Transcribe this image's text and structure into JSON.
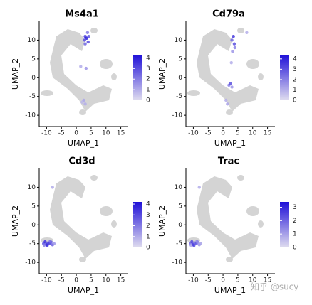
{
  "chart_data": [
    {
      "type": "scatter",
      "title": "Ms4a1",
      "x_label": "UMAP_1",
      "y_label": "UMAP_2",
      "xlim": [
        -12.5,
        17.5
      ],
      "ylim": [
        -13,
        15
      ],
      "xticks": [
        -10,
        -5,
        0,
        5,
        10,
        15
      ],
      "yticks": [
        -10,
        -5,
        0,
        5,
        10
      ],
      "x": [
        3,
        3.5,
        4,
        3,
        3.8,
        2.8,
        4.2,
        3.3,
        2.5,
        3,
        2,
        1.5
      ],
      "y": [
        11,
        10.5,
        9.5,
        9,
        12,
        10,
        11,
        2.5,
        -6,
        -7,
        -6.5,
        3
      ],
      "values": [
        3.5,
        4,
        3,
        2.5,
        2,
        3,
        2.8,
        1.5,
        1.2,
        1,
        0.8,
        1
      ],
      "low_color": "#e0ddef",
      "high_color": "#1f10d8",
      "clim": [
        0,
        4.3
      ],
      "cticks": [
        0,
        1,
        2,
        3,
        4
      ]
    },
    {
      "type": "scatter",
      "title": "Cd79a",
      "x_label": "UMAP_1",
      "y_label": "UMAP_2",
      "xlim": [
        -12.5,
        17.5
      ],
      "ylim": [
        -13,
        15
      ],
      "xticks": [
        -10,
        -5,
        0,
        5,
        10,
        15
      ],
      "yticks": [
        -10,
        -5,
        0,
        5,
        10
      ],
      "x": [
        3,
        3.5,
        4,
        3.2,
        3.8,
        2,
        2.5,
        3,
        1,
        1.5,
        8,
        2.8
      ],
      "y": [
        10,
        11,
        8,
        7,
        9,
        -2,
        -1.5,
        -2.5,
        -6,
        -7,
        12,
        4
      ],
      "values": [
        2.5,
        3.5,
        2,
        1.5,
        3,
        2,
        3,
        1.5,
        1,
        1.2,
        1,
        1
      ],
      "low_color": "#e0ddef",
      "high_color": "#1f10d8",
      "clim": [
        0,
        4.4
      ],
      "cticks": [
        0,
        1,
        2,
        3,
        4
      ]
    },
    {
      "type": "scatter",
      "title": "Cd3d",
      "x_label": "UMAP_1",
      "y_label": "UMAP_2",
      "xlim": [
        -12.5,
        17.5
      ],
      "ylim": [
        -13,
        15
      ],
      "xticks": [
        -10,
        -5,
        0,
        5,
        10,
        15
      ],
      "yticks": [
        -10,
        -5,
        0,
        5,
        10
      ],
      "x": [
        -11,
        -10.5,
        -10,
        -9.5,
        -9,
        -8.5,
        -8,
        -10.8,
        -9.8,
        -8.8,
        -7.5,
        -8
      ],
      "y": [
        -5,
        -4.5,
        -5.2,
        -4.8,
        -5,
        -4.6,
        -5.3,
        -5.4,
        -5.5,
        -4.4,
        -5,
        10
      ],
      "values": [
        3,
        3.5,
        4,
        3,
        3.2,
        2.8,
        2.5,
        2,
        3.5,
        2.2,
        1.5,
        1
      ],
      "low_color": "#e0ddef",
      "high_color": "#1f10d8",
      "clim": [
        0,
        4.2
      ],
      "cticks": [
        0,
        1,
        2,
        3,
        4
      ]
    },
    {
      "type": "scatter",
      "title": "Trac",
      "x_label": "UMAP_1",
      "y_label": "UMAP_2",
      "xlim": [
        -12.5,
        17.5
      ],
      "ylim": [
        -13,
        15
      ],
      "xticks": [
        -10,
        -5,
        0,
        5,
        10,
        15
      ],
      "yticks": [
        -10,
        -5,
        0,
        5,
        10
      ],
      "x": [
        -11,
        -10.5,
        -10,
        -9.5,
        -9,
        -8.5,
        -8,
        -10.8,
        -9.8,
        -8.8,
        -7.5,
        -8
      ],
      "y": [
        -5,
        -4.5,
        -5.2,
        -4.8,
        -5,
        -4.6,
        -5.3,
        -5.4,
        -5.5,
        -4.4,
        -5,
        10
      ],
      "values": [
        2,
        2.5,
        3,
        1.8,
        2.2,
        1.5,
        1.2,
        1,
        2.5,
        1.4,
        1,
        0.8
      ],
      "low_color": "#e0ddef",
      "high_color": "#1f10d8",
      "clim": [
        0,
        3.4
      ],
      "cticks": [
        0,
        1,
        2,
        3
      ]
    }
  ],
  "watermark": "知乎 @sucy"
}
